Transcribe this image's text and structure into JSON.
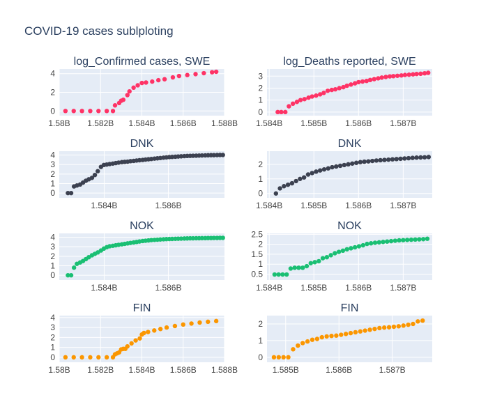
{
  "title": "COVID-19 cases sublploting",
  "colors": {
    "background": "#ffffff",
    "plot_bg": "#e5ecf6",
    "grid": "#ffffff",
    "text": "#2a3f5f",
    "tick_text": "#444444"
  },
  "chart_data": [
    {
      "type": "scatter",
      "title": "log_Confirmed cases, SWE",
      "color": "#fe3366",
      "xlim": [
        1580000000.0,
        1588000000.0
      ],
      "ylim": [
        -0.5,
        4.5
      ],
      "xticks": [
        1580000000.0,
        1582000000.0,
        1584000000.0,
        1586000000.0,
        1588000000.0
      ],
      "xtick_labels": [
        "1.58B",
        "1.582B",
        "1.584B",
        "1.586B",
        "1.588B"
      ],
      "yticks": [
        0,
        2,
        4
      ],
      "ytick_labels": [
        "0",
        "2",
        "4"
      ],
      "x": [
        1580300000.0,
        1580700000.0,
        1581100000.0,
        1581500000.0,
        1581900000.0,
        1582300000.0,
        1582600000.0,
        1582700000.0,
        1582900000.0,
        1583000000.0,
        1583100000.0,
        1583300000.0,
        1583400000.0,
        1583600000.0,
        1583800000.0,
        1584000000.0,
        1584200000.0,
        1584500000.0,
        1584800000.0,
        1585100000.0,
        1585500000.0,
        1585800000.0,
        1586200000.0,
        1586600000.0,
        1587000000.0,
        1587400000.0,
        1587600000.0
      ],
      "y": [
        0,
        0,
        0,
        0,
        0,
        0,
        0,
        0.6,
        0.85,
        1.1,
        1.2,
        1.7,
        2.1,
        2.5,
        2.75,
        3.0,
        3.05,
        3.15,
        3.3,
        3.4,
        3.6,
        3.75,
        3.85,
        3.95,
        4.05,
        4.15,
        4.2
      ]
    },
    {
      "type": "scatter",
      "title": "log_Deaths reported, SWE",
      "color": "#fe3366",
      "xlim": [
        1583950000.0,
        1587650000.0
      ],
      "ylim": [
        -0.3,
        3.6
      ],
      "xticks": [
        1584000000.0,
        1585000000.0,
        1586000000.0,
        1587000000.0
      ],
      "xtick_labels": [
        "1.584B",
        "1.585B",
        "1.586B",
        "1.587B"
      ],
      "yticks": [
        0,
        1,
        2,
        3
      ],
      "ytick_labels": [
        "0",
        "1",
        "2",
        "3"
      ],
      "x": [
        1584190000.0,
        1584270000.0,
        1584360000.0,
        1584440000.0,
        1584530000.0,
        1584620000.0,
        1584700000.0,
        1584790000.0,
        1584880000.0,
        1584960000.0,
        1585050000.0,
        1585140000.0,
        1585220000.0,
        1585310000.0,
        1585400000.0,
        1585480000.0,
        1585570000.0,
        1585660000.0,
        1585740000.0,
        1585830000.0,
        1585920000.0,
        1586000000.0,
        1586090000.0,
        1586180000.0,
        1586260000.0,
        1586350000.0,
        1586440000.0,
        1586520000.0,
        1586610000.0,
        1586700000.0,
        1586780000.0,
        1586870000.0,
        1586960000.0,
        1587040000.0,
        1587130000.0,
        1587220000.0,
        1587300000.0,
        1587390000.0,
        1587480000.0,
        1587560000.0
      ],
      "y": [
        0,
        0,
        0,
        0.48,
        0.7,
        0.85,
        1.0,
        1.08,
        1.2,
        1.3,
        1.38,
        1.48,
        1.6,
        1.78,
        1.85,
        1.9,
        2.0,
        2.08,
        2.2,
        2.3,
        2.4,
        2.5,
        2.55,
        2.6,
        2.68,
        2.75,
        2.82,
        2.88,
        2.93,
        2.98,
        3.0,
        3.03,
        3.06,
        3.1,
        3.12,
        3.15,
        3.18,
        3.2,
        3.24,
        3.28
      ]
    },
    {
      "type": "scatter",
      "title": "DNK",
      "color": "#3c4150",
      "xlim": [
        1582600000.0,
        1587750000.0
      ],
      "ylim": [
        -0.5,
        4.4
      ],
      "xticks": [
        1584000000.0,
        1586000000.0
      ],
      "xtick_labels": [
        "1.584B",
        "1.586B"
      ],
      "yticks": [
        0,
        1,
        2,
        3,
        4
      ],
      "ytick_labels": [
        "0",
        "1",
        "2",
        "3",
        "4"
      ],
      "x": [
        1582870000.0,
        1582970000.0,
        1583060000.0,
        1583150000.0,
        1583250000.0,
        1583340000.0,
        1583430000.0,
        1583520000.0,
        1583620000.0,
        1583710000.0,
        1583800000.0,
        1583900000.0,
        1583990000.0,
        1584080000.0,
        1584170000.0,
        1584270000.0,
        1584360000.0,
        1584450000.0,
        1584550000.0,
        1584640000.0,
        1584730000.0,
        1584820000.0,
        1584920000.0,
        1585010000.0,
        1585100000.0,
        1585200000.0,
        1585290000.0,
        1585380000.0,
        1585470000.0,
        1585570000.0,
        1585660000.0,
        1585750000.0,
        1585850000.0,
        1585940000.0,
        1586030000.0,
        1586120000.0,
        1586220000.0,
        1586310000.0,
        1586400000.0,
        1586500000.0,
        1586590000.0,
        1586680000.0,
        1586770000.0,
        1586870000.0,
        1586960000.0,
        1587050000.0,
        1587150000.0,
        1587240000.0,
        1587330000.0,
        1587420000.0,
        1587520000.0,
        1587610000.0,
        1587700000.0
      ],
      "y": [
        0,
        0,
        0.7,
        0.8,
        0.9,
        1.1,
        1.3,
        1.45,
        1.6,
        1.9,
        2.3,
        2.75,
        2.95,
        3.0,
        3.05,
        3.1,
        3.15,
        3.2,
        3.25,
        3.28,
        3.3,
        3.35,
        3.38,
        3.42,
        3.45,
        3.48,
        3.52,
        3.55,
        3.58,
        3.62,
        3.65,
        3.68,
        3.72,
        3.75,
        3.78,
        3.8,
        3.82,
        3.84,
        3.86,
        3.88,
        3.9,
        3.91,
        3.92,
        3.93,
        3.94,
        3.95,
        3.96,
        3.97,
        3.98,
        3.98,
        3.99,
        4.0,
        4.0
      ]
    },
    {
      "type": "scatter",
      "title": "DNK",
      "color": "#3c4150",
      "xlim": [
        1583950000.0,
        1587650000.0
      ],
      "ylim": [
        -0.3,
        2.9
      ],
      "xticks": [
        1584000000.0,
        1585000000.0,
        1586000000.0,
        1587000000.0
      ],
      "xtick_labels": [
        "1.584B",
        "1.585B",
        "1.586B",
        "1.587B"
      ],
      "yticks": [
        0,
        1,
        2
      ],
      "ytick_labels": [
        "0",
        "1",
        "2"
      ],
      "x": [
        1584150000.0,
        1584240000.0,
        1584330000.0,
        1584420000.0,
        1584510000.0,
        1584600000.0,
        1584690000.0,
        1584780000.0,
        1584870000.0,
        1584960000.0,
        1585050000.0,
        1585140000.0,
        1585230000.0,
        1585320000.0,
        1585410000.0,
        1585500000.0,
        1585590000.0,
        1585680000.0,
        1585770000.0,
        1585860000.0,
        1585950000.0,
        1586040000.0,
        1586130000.0,
        1586220000.0,
        1586310000.0,
        1586400000.0,
        1586490000.0,
        1586580000.0,
        1586670000.0,
        1586760000.0,
        1586850000.0,
        1586940000.0,
        1587030000.0,
        1587120000.0,
        1587210000.0,
        1587300000.0,
        1587390000.0,
        1587480000.0,
        1587570000.0
      ],
      "y": [
        0,
        0.35,
        0.5,
        0.6,
        0.7,
        0.85,
        1.0,
        1.1,
        1.3,
        1.4,
        1.5,
        1.58,
        1.65,
        1.72,
        1.8,
        1.85,
        1.9,
        1.95,
        2.0,
        2.05,
        2.1,
        2.15,
        2.18,
        2.2,
        2.23,
        2.26,
        2.28,
        2.3,
        2.32,
        2.34,
        2.36,
        2.38,
        2.4,
        2.42,
        2.44,
        2.46,
        2.47,
        2.48,
        2.5
      ]
    },
    {
      "type": "scatter",
      "title": "NOK",
      "color": "#1abf73",
      "xlim": [
        1582600000.0,
        1587750000.0
      ],
      "ylim": [
        -0.5,
        4.4
      ],
      "xticks": [
        1584000000.0,
        1586000000.0
      ],
      "xtick_labels": [
        "1.584B",
        "1.586B"
      ],
      "yticks": [
        0,
        1,
        2,
        3,
        4
      ],
      "ytick_labels": [
        "0",
        "1",
        "2",
        "3",
        "4"
      ],
      "x": [
        1582870000.0,
        1582970000.0,
        1583060000.0,
        1583150000.0,
        1583250000.0,
        1583340000.0,
        1583430000.0,
        1583520000.0,
        1583620000.0,
        1583710000.0,
        1583800000.0,
        1583900000.0,
        1583990000.0,
        1584080000.0,
        1584170000.0,
        1584270000.0,
        1584360000.0,
        1584450000.0,
        1584550000.0,
        1584640000.0,
        1584730000.0,
        1584820000.0,
        1584920000.0,
        1585010000.0,
        1585100000.0,
        1585200000.0,
        1585290000.0,
        1585380000.0,
        1585470000.0,
        1585570000.0,
        1585660000.0,
        1585750000.0,
        1585850000.0,
        1585940000.0,
        1586030000.0,
        1586120000.0,
        1586220000.0,
        1586310000.0,
        1586400000.0,
        1586500000.0,
        1586590000.0,
        1586680000.0,
        1586770000.0,
        1586870000.0,
        1586960000.0,
        1587050000.0,
        1587150000.0,
        1587240000.0,
        1587330000.0,
        1587420000.0,
        1587520000.0,
        1587610000.0,
        1587700000.0
      ],
      "y": [
        0,
        0,
        0.8,
        1.2,
        1.35,
        1.5,
        1.7,
        1.9,
        2.1,
        2.25,
        2.4,
        2.6,
        2.8,
        2.95,
        3.05,
        3.1,
        3.15,
        3.2,
        3.25,
        3.3,
        3.35,
        3.4,
        3.45,
        3.5,
        3.55,
        3.6,
        3.63,
        3.66,
        3.7,
        3.72,
        3.74,
        3.76,
        3.78,
        3.8,
        3.81,
        3.82,
        3.83,
        3.84,
        3.85,
        3.86,
        3.87,
        3.88,
        3.88,
        3.89,
        3.89,
        3.9,
        3.9,
        3.91,
        3.91,
        3.92,
        3.92,
        3.93,
        3.93
      ]
    },
    {
      "type": "scatter",
      "title": "NOK",
      "color": "#1abf73",
      "xlim": [
        1583950000.0,
        1587650000.0
      ],
      "ylim": [
        0.2,
        2.55
      ],
      "xticks": [
        1584000000.0,
        1585000000.0,
        1586000000.0,
        1587000000.0
      ],
      "xtick_labels": [
        "1.584B",
        "1.585B",
        "1.586B",
        "1.587B"
      ],
      "yticks": [
        0.5,
        1,
        1.5,
        2,
        2.5
      ],
      "ytick_labels": [
        "0.5",
        "1",
        "1.5",
        "2",
        "2.5"
      ],
      "x": [
        1584120000.0,
        1584210000.0,
        1584300000.0,
        1584390000.0,
        1584480000.0,
        1584570000.0,
        1584660000.0,
        1584750000.0,
        1584840000.0,
        1584930000.0,
        1585020000.0,
        1585110000.0,
        1585200000.0,
        1585290000.0,
        1585380000.0,
        1585470000.0,
        1585560000.0,
        1585650000.0,
        1585740000.0,
        1585830000.0,
        1585920000.0,
        1586010000.0,
        1586100000.0,
        1586190000.0,
        1586280000.0,
        1586370000.0,
        1586460000.0,
        1586550000.0,
        1586640000.0,
        1586730000.0,
        1586820000.0,
        1586910000.0,
        1587000000.0,
        1587090000.0,
        1587180000.0,
        1587270000.0,
        1587360000.0,
        1587450000.0,
        1587540000.0
      ],
      "y": [
        0.48,
        0.48,
        0.48,
        0.48,
        0.78,
        0.82,
        0.82,
        0.82,
        0.9,
        1.05,
        1.1,
        1.15,
        1.3,
        1.35,
        1.45,
        1.55,
        1.62,
        1.68,
        1.75,
        1.8,
        1.85,
        1.9,
        1.95,
        2.02,
        2.05,
        2.08,
        2.1,
        2.12,
        2.14,
        2.16,
        2.18,
        2.2,
        2.21,
        2.22,
        2.23,
        2.24,
        2.25,
        2.26,
        2.28
      ]
    },
    {
      "type": "scatter",
      "title": "FIN",
      "color": "#fb9600",
      "xlim": [
        1580000000.0,
        1588000000.0
      ],
      "ylim": [
        -0.5,
        4.2
      ],
      "xticks": [
        1580000000.0,
        1582000000.0,
        1584000000.0,
        1586000000.0,
        1588000000.0
      ],
      "xtick_labels": [
        "1.58B",
        "1.582B",
        "1.584B",
        "1.586B",
        "1.588B"
      ],
      "yticks": [
        0,
        1,
        2,
        3,
        4
      ],
      "ytick_labels": [
        "0",
        "1",
        "2",
        "3",
        "4"
      ],
      "x": [
        1580300000.0,
        1580700000.0,
        1581100000.0,
        1581500000.0,
        1581900000.0,
        1582300000.0,
        1582600000.0,
        1582700000.0,
        1582800000.0,
        1582900000.0,
        1583000000.0,
        1583100000.0,
        1583200000.0,
        1583300000.0,
        1583500000.0,
        1583700000.0,
        1583900000.0,
        1584000000.0,
        1584100000.0,
        1584300000.0,
        1584600000.0,
        1584900000.0,
        1585200000.0,
        1585600000.0,
        1586000000.0,
        1586400000.0,
        1586800000.0,
        1587200000.0,
        1587600000.0
      ],
      "y": [
        0,
        0,
        0,
        0,
        0,
        0,
        0,
        0.3,
        0.4,
        0.5,
        0.8,
        0.85,
        0.85,
        1.1,
        1.4,
        1.7,
        1.9,
        2.3,
        2.45,
        2.55,
        2.7,
        2.85,
        3.0,
        3.15,
        3.3,
        3.4,
        3.5,
        3.58,
        3.65
      ]
    },
    {
      "type": "scatter",
      "title": "FIN",
      "color": "#fb9600",
      "xlim": [
        1584650000.0,
        1587750000.0
      ],
      "ylim": [
        -0.3,
        2.5
      ],
      "xticks": [
        1585000000.0,
        1586000000.0,
        1587000000.0
      ],
      "xtick_labels": [
        "1.585B",
        "1.586B",
        "1.587B"
      ],
      "yticks": [
        0,
        1,
        2
      ],
      "ytick_labels": [
        "0",
        "1",
        "2"
      ],
      "x": [
        1584780000.0,
        1584870000.0,
        1584960000.0,
        1585050000.0,
        1585140000.0,
        1585230000.0,
        1585320000.0,
        1585410000.0,
        1585500000.0,
        1585590000.0,
        1585680000.0,
        1585770000.0,
        1585860000.0,
        1585950000.0,
        1586040000.0,
        1586130000.0,
        1586220000.0,
        1586310000.0,
        1586400000.0,
        1586490000.0,
        1586580000.0,
        1586670000.0,
        1586760000.0,
        1586850000.0,
        1586940000.0,
        1587030000.0,
        1587120000.0,
        1587210000.0,
        1587300000.0,
        1587390000.0,
        1587480000.0,
        1587570000.0
      ],
      "y": [
        0,
        0,
        0,
        0,
        0.48,
        0.7,
        0.85,
        0.95,
        1.05,
        1.1,
        1.2,
        1.25,
        1.28,
        1.3,
        1.35,
        1.4,
        1.45,
        1.5,
        1.55,
        1.6,
        1.65,
        1.7,
        1.75,
        1.78,
        1.8,
        1.83,
        1.86,
        1.9,
        1.95,
        2.0,
        2.15,
        2.2
      ]
    }
  ]
}
